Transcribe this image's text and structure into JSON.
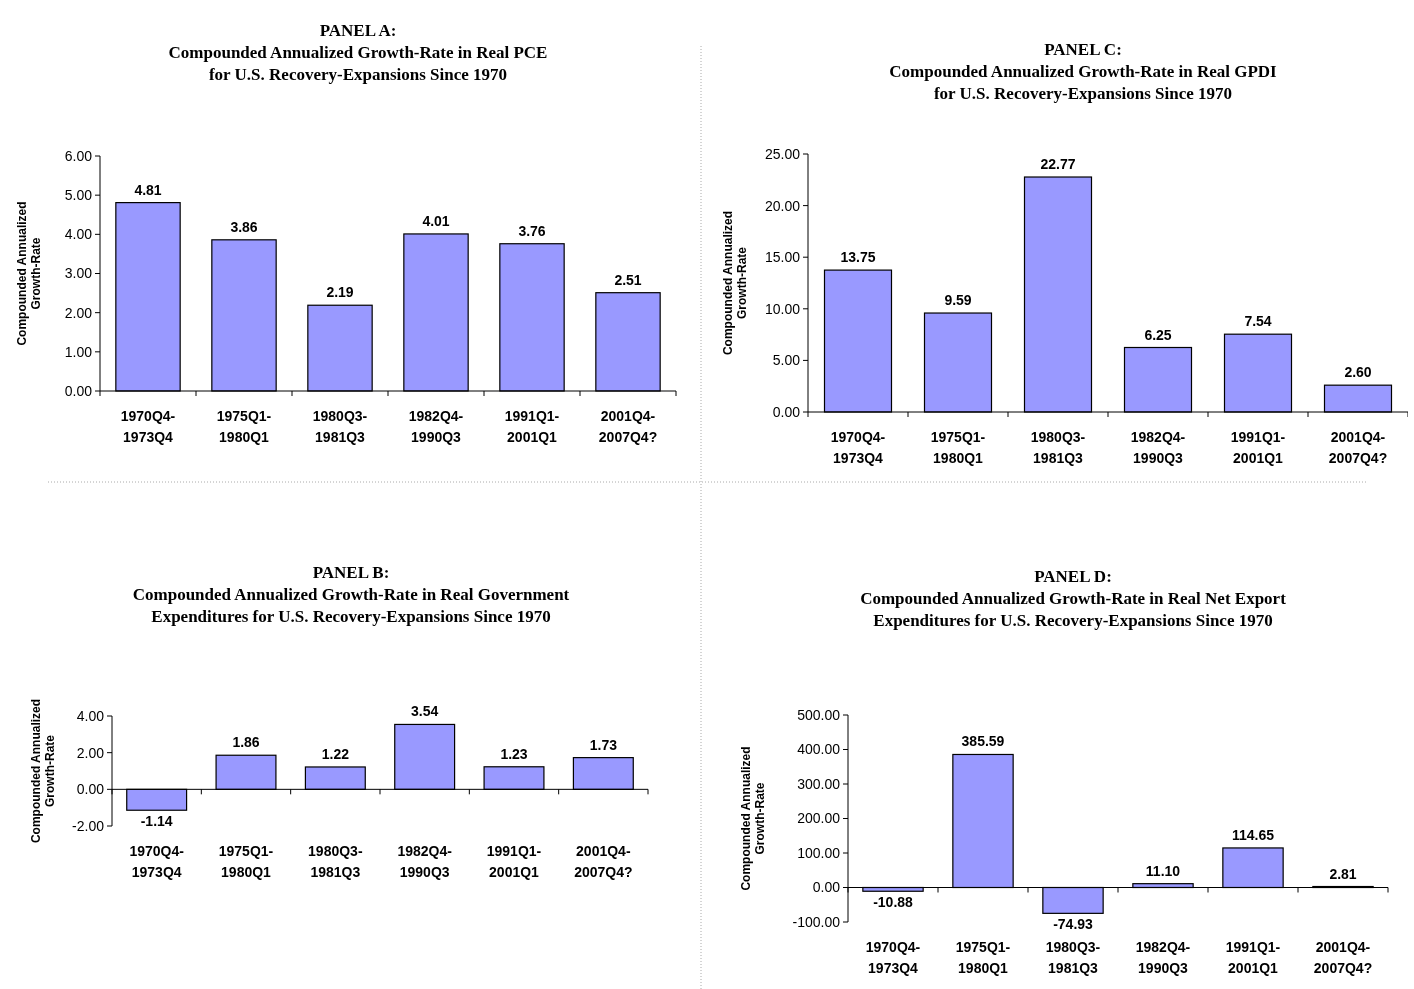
{
  "chart_data": [
    {
      "type": "bar",
      "title": "PANEL A:\nCompounded Annualized Growth-Rate in Real PCE\nfor U.S. Recovery-Expansions Since 1970",
      "ylabel": "Compounded Annualized\nGrowth-Rate",
      "categories": [
        "1970Q4-1973Q4",
        "1975Q1-1980Q1",
        "1980Q3-1981Q3",
        "1982Q4-1990Q3",
        "1991Q1-2001Q1",
        "2001Q4-2007Q4?"
      ],
      "values": [
        4.81,
        3.86,
        2.19,
        4.01,
        3.76,
        2.51
      ],
      "color": "#9999ff",
      "ylim": [
        0,
        6
      ],
      "yticks": [
        {
          "value": 0,
          "label": "0.00"
        },
        {
          "value": 1,
          "label": "1.00"
        },
        {
          "value": 2,
          "label": "2.00"
        },
        {
          "value": 3,
          "label": "3.00"
        },
        {
          "value": 4,
          "label": "4.00"
        },
        {
          "value": 5,
          "label": "5.00"
        },
        {
          "value": 6,
          "label": "6.00"
        }
      ],
      "data_labels": true
    },
    {
      "type": "bar",
      "title": "PANEL C:\nCompounded Annualized Growth-Rate in Real GPDI\nfor U.S. Recovery-Expansions Since 1970",
      "ylabel": "Compounded Annualized\nGrowth-Rate",
      "categories": [
        "1970Q4-1973Q4",
        "1975Q1-1980Q1",
        "1980Q3-1981Q3",
        "1982Q4-1990Q3",
        "1991Q1-2001Q1",
        "2001Q4-2007Q4?"
      ],
      "values": [
        13.75,
        9.59,
        22.77,
        6.25,
        7.54,
        2.6
      ],
      "value_labels": [
        "13.75",
        "9.59",
        "22.77",
        "6.25",
        "7.54",
        "2.60"
      ],
      "color": "#9999ff",
      "ylim": [
        0,
        25
      ],
      "yticks": [
        {
          "value": 0,
          "label": "0.00"
        },
        {
          "value": 5,
          "label": "5.00"
        },
        {
          "value": 10,
          "label": "10.00"
        },
        {
          "value": 15,
          "label": "15.00"
        },
        {
          "value": 20,
          "label": "20.00"
        },
        {
          "value": 25,
          "label": "25.00"
        }
      ]
    },
    {
      "type": "bar",
      "title": "PANEL B:\nCompounded Annualized Growth-Rate in Real Government\nExpenditures for U.S. Recovery-Expansions Since 1970",
      "ylabel": "Compounded Annualized\nGrowth-Rate",
      "categories": [
        "1970Q4-1973Q4",
        "1975Q1-1980Q1",
        "1980Q3-1981Q3",
        "1982Q4-1990Q3",
        "1991Q1-2001Q1",
        "2001Q4-2007Q4?"
      ],
      "values": [
        -1.14,
        1.86,
        1.22,
        3.54,
        1.23,
        1.73
      ],
      "color": "#9999ff",
      "ylim": [
        -2,
        4
      ],
      "yticks": [
        {
          "value": -2,
          "label": "-2.00"
        },
        {
          "value": 0,
          "label": "0.00"
        },
        {
          "value": 2,
          "label": "2.00"
        },
        {
          "value": 4,
          "label": "4.00"
        }
      ],
      "data_labels": true
    },
    {
      "type": "bar",
      "title": "PANEL D:\nCompounded Annualized Growth-Rate in Real Net Export\nExpenditures for U.S. Recovery-Expansions Since 1970",
      "ylabel": "Compounded Annualized\nGrowth-Rate",
      "categories": [
        "1970Q4-1973Q4",
        "1975Q1-1980Q1",
        "1980Q3-1981Q3",
        "1982Q4-1990Q3",
        "1991Q1-2001Q1",
        "2001Q4-2007Q4?"
      ],
      "values": [
        -10.88,
        385.59,
        -74.93,
        11.1,
        114.65,
        2.81
      ],
      "value_labels": [
        "-10.88",
        "385.59",
        "-74.93",
        "11.10",
        "114.65",
        "2.81"
      ],
      "color": "#9999ff",
      "ylim": [
        -100,
        500
      ],
      "yticks": [
        {
          "value": -100,
          "label": "-100.00"
        },
        {
          "value": 0,
          "label": "0.00"
        },
        {
          "value": 100,
          "label": "100.00"
        },
        {
          "value": 200,
          "label": "200.00"
        },
        {
          "value": 300,
          "label": "300.00"
        },
        {
          "value": 400,
          "label": "400.00"
        },
        {
          "value": 500,
          "label": "500.00"
        }
      ]
    }
  ]
}
